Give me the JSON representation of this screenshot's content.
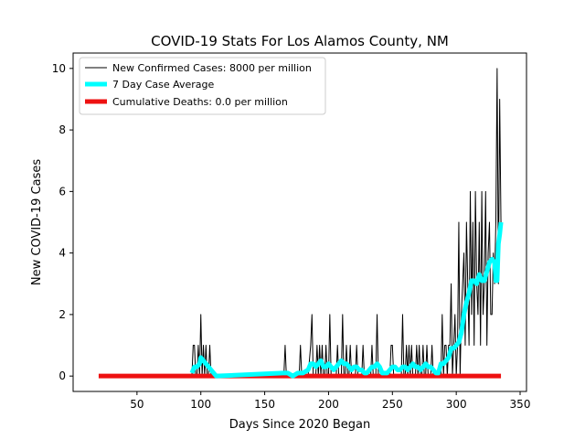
{
  "chart_data": {
    "type": "line",
    "title": "COVID-19 Stats For Los Alamos County, NM",
    "xlabel": "Days Since 2020 Began",
    "ylabel": "New COVID-19 Cases",
    "xlim": [
      0,
      355
    ],
    "ylim": [
      -0.5,
      10.5
    ],
    "xticks": [
      50,
      100,
      150,
      200,
      250,
      300,
      350
    ],
    "yticks": [
      0,
      2,
      4,
      6,
      8,
      10
    ],
    "grid": false,
    "legend_position": "top-left",
    "series": [
      {
        "name": "New Confirmed Cases: 8000 per million",
        "color": "#000000",
        "points": [
          [
            93,
            0
          ],
          [
            94,
            1
          ],
          [
            95,
            1
          ],
          [
            96,
            0
          ],
          [
            97,
            0
          ],
          [
            98,
            1
          ],
          [
            99,
            0
          ],
          [
            100,
            2
          ],
          [
            101,
            0
          ],
          [
            102,
            1
          ],
          [
            103,
            0
          ],
          [
            104,
            1
          ],
          [
            105,
            0
          ],
          [
            106,
            0
          ],
          [
            107,
            1
          ],
          [
            108,
            0
          ],
          [
            109,
            0
          ],
          [
            110,
            0
          ],
          [
            111,
            0
          ],
          [
            112,
            0
          ],
          [
            164,
            0
          ],
          [
            165,
            0
          ],
          [
            166,
            1
          ],
          [
            167,
            0
          ],
          [
            168,
            0
          ],
          [
            170,
            0
          ],
          [
            172,
            0
          ],
          [
            174,
            0
          ],
          [
            176,
            0
          ],
          [
            177,
            0
          ],
          [
            178,
            1
          ],
          [
            179,
            0
          ],
          [
            180,
            0
          ],
          [
            182,
            0
          ],
          [
            184,
            0
          ],
          [
            186,
            1
          ],
          [
            187,
            2
          ],
          [
            188,
            0
          ],
          [
            189,
            0
          ],
          [
            190,
            0
          ],
          [
            191,
            1
          ],
          [
            192,
            0
          ],
          [
            193,
            1
          ],
          [
            194,
            0
          ],
          [
            195,
            1
          ],
          [
            196,
            0
          ],
          [
            197,
            0
          ],
          [
            198,
            1
          ],
          [
            199,
            0
          ],
          [
            200,
            0
          ],
          [
            201,
            2
          ],
          [
            202,
            0
          ],
          [
            203,
            0
          ],
          [
            204,
            0
          ],
          [
            205,
            0
          ],
          [
            206,
            0
          ],
          [
            207,
            1
          ],
          [
            208,
            0
          ],
          [
            209,
            0
          ],
          [
            210,
            0
          ],
          [
            211,
            2
          ],
          [
            212,
            0
          ],
          [
            213,
            0
          ],
          [
            214,
            1
          ],
          [
            215,
            0
          ],
          [
            216,
            0
          ],
          [
            217,
            1
          ],
          [
            218,
            0
          ],
          [
            219,
            0
          ],
          [
            220,
            0
          ],
          [
            221,
            0
          ],
          [
            222,
            1
          ],
          [
            223,
            0
          ],
          [
            224,
            0
          ],
          [
            225,
            0
          ],
          [
            226,
            0
          ],
          [
            227,
            1
          ],
          [
            228,
            0
          ],
          [
            229,
            0
          ],
          [
            230,
            0
          ],
          [
            231,
            0
          ],
          [
            232,
            0
          ],
          [
            233,
            0
          ],
          [
            234,
            1
          ],
          [
            235,
            0
          ],
          [
            236,
            0
          ],
          [
            237,
            0
          ],
          [
            238,
            2
          ],
          [
            239,
            0
          ],
          [
            240,
            0
          ],
          [
            241,
            0
          ],
          [
            242,
            0
          ],
          [
            243,
            0
          ],
          [
            244,
            0
          ],
          [
            245,
            0
          ],
          [
            246,
            0
          ],
          [
            247,
            0
          ],
          [
            248,
            0
          ],
          [
            249,
            1
          ],
          [
            250,
            1
          ],
          [
            251,
            0
          ],
          [
            252,
            0
          ],
          [
            253,
            0
          ],
          [
            254,
            0
          ],
          [
            255,
            0
          ],
          [
            256,
            0
          ],
          [
            257,
            0
          ],
          [
            258,
            2
          ],
          [
            259,
            0
          ],
          [
            260,
            0
          ],
          [
            261,
            1
          ],
          [
            262,
            0
          ],
          [
            263,
            1
          ],
          [
            264,
            0
          ],
          [
            265,
            1
          ],
          [
            266,
            0
          ],
          [
            267,
            0
          ],
          [
            268,
            0
          ],
          [
            269,
            1
          ],
          [
            270,
            0
          ],
          [
            271,
            1
          ],
          [
            272,
            0
          ],
          [
            273,
            0
          ],
          [
            274,
            1
          ],
          [
            275,
            0
          ],
          [
            276,
            0
          ],
          [
            277,
            1
          ],
          [
            278,
            0
          ],
          [
            279,
            0
          ],
          [
            280,
            0
          ],
          [
            281,
            1
          ],
          [
            282,
            0
          ],
          [
            283,
            0
          ],
          [
            284,
            0
          ],
          [
            285,
            0
          ],
          [
            286,
            0
          ],
          [
            287,
            0
          ],
          [
            288,
            0
          ],
          [
            289,
            2
          ],
          [
            290,
            0
          ],
          [
            291,
            1
          ],
          [
            292,
            1
          ],
          [
            293,
            0
          ],
          [
            294,
            1
          ],
          [
            295,
            1
          ],
          [
            296,
            3
          ],
          [
            297,
            0
          ],
          [
            298,
            1
          ],
          [
            299,
            2
          ],
          [
            300,
            0
          ],
          [
            301,
            1
          ],
          [
            302,
            5
          ],
          [
            303,
            0
          ],
          [
            304,
            2
          ],
          [
            305,
            3
          ],
          [
            306,
            4
          ],
          [
            307,
            1
          ],
          [
            308,
            5
          ],
          [
            309,
            3
          ],
          [
            310,
            1
          ],
          [
            311,
            6
          ],
          [
            312,
            2
          ],
          [
            313,
            5
          ],
          [
            314,
            1
          ],
          [
            315,
            6
          ],
          [
            316,
            3
          ],
          [
            317,
            2
          ],
          [
            318,
            5
          ],
          [
            319,
            1
          ],
          [
            320,
            6
          ],
          [
            321,
            2
          ],
          [
            322,
            3
          ],
          [
            323,
            6
          ],
          [
            324,
            1
          ],
          [
            325,
            4
          ],
          [
            326,
            5
          ],
          [
            327,
            2
          ],
          [
            328,
            2
          ],
          [
            329,
            4
          ],
          [
            330,
            3
          ],
          [
            331,
            5
          ],
          [
            332,
            10
          ],
          [
            333,
            3
          ],
          [
            334,
            9
          ],
          [
            335,
            5
          ]
        ]
      },
      {
        "name": "7 Day Case Average",
        "color": "#00ffff",
        "points": [
          [
            93,
            0.1
          ],
          [
            95,
            0.3
          ],
          [
            97,
            0.3
          ],
          [
            99,
            0.4
          ],
          [
            100,
            0.6
          ],
          [
            102,
            0.5
          ],
          [
            104,
            0.4
          ],
          [
            106,
            0.3
          ],
          [
            108,
            0.2
          ],
          [
            110,
            0.1
          ],
          [
            112,
            0.0
          ],
          [
            164,
            0.1
          ],
          [
            168,
            0.1
          ],
          [
            172,
            0.0
          ],
          [
            176,
            0.1
          ],
          [
            180,
            0.1
          ],
          [
            184,
            0.2
          ],
          [
            186,
            0.4
          ],
          [
            188,
            0.4
          ],
          [
            190,
            0.3
          ],
          [
            192,
            0.4
          ],
          [
            194,
            0.5
          ],
          [
            196,
            0.3
          ],
          [
            198,
            0.3
          ],
          [
            200,
            0.4
          ],
          [
            202,
            0.3
          ],
          [
            204,
            0.2
          ],
          [
            206,
            0.3
          ],
          [
            208,
            0.4
          ],
          [
            210,
            0.5
          ],
          [
            212,
            0.4
          ],
          [
            214,
            0.4
          ],
          [
            216,
            0.3
          ],
          [
            218,
            0.2
          ],
          [
            220,
            0.3
          ],
          [
            222,
            0.3
          ],
          [
            224,
            0.2
          ],
          [
            226,
            0.2
          ],
          [
            228,
            0.1
          ],
          [
            230,
            0.1
          ],
          [
            232,
            0.2
          ],
          [
            234,
            0.3
          ],
          [
            236,
            0.3
          ],
          [
            238,
            0.4
          ],
          [
            240,
            0.3
          ],
          [
            242,
            0.1
          ],
          [
            244,
            0.1
          ],
          [
            246,
            0.1
          ],
          [
            248,
            0.2
          ],
          [
            250,
            0.3
          ],
          [
            252,
            0.3
          ],
          [
            254,
            0.2
          ],
          [
            256,
            0.2
          ],
          [
            258,
            0.3
          ],
          [
            260,
            0.3
          ],
          [
            262,
            0.2
          ],
          [
            264,
            0.3
          ],
          [
            266,
            0.4
          ],
          [
            268,
            0.3
          ],
          [
            270,
            0.3
          ],
          [
            272,
            0.2
          ],
          [
            274,
            0.3
          ],
          [
            276,
            0.4
          ],
          [
            278,
            0.3
          ],
          [
            280,
            0.3
          ],
          [
            282,
            0.2
          ],
          [
            284,
            0.1
          ],
          [
            286,
            0.1
          ],
          [
            288,
            0.4
          ],
          [
            290,
            0.4
          ],
          [
            292,
            0.5
          ],
          [
            294,
            0.6
          ],
          [
            296,
            0.9
          ],
          [
            298,
            0.9
          ],
          [
            300,
            1.0
          ],
          [
            302,
            1.1
          ],
          [
            304,
            1.4
          ],
          [
            306,
            2.0
          ],
          [
            308,
            2.4
          ],
          [
            310,
            2.7
          ],
          [
            312,
            3.1
          ],
          [
            314,
            3.1
          ],
          [
            316,
            3.0
          ],
          [
            318,
            3.3
          ],
          [
            320,
            3.1
          ],
          [
            322,
            3.1
          ],
          [
            324,
            3.4
          ],
          [
            326,
            3.7
          ],
          [
            328,
            3.8
          ],
          [
            330,
            3.7
          ],
          [
            331,
            3.1
          ],
          [
            332,
            3.1
          ],
          [
            333,
            4.3
          ],
          [
            334,
            4.6
          ],
          [
            335,
            5.0
          ]
        ]
      },
      {
        "name": "Cumulative Deaths: 0.0 per million",
        "color": "#ee1111",
        "points": [
          [
            20,
            0
          ],
          [
            335,
            0
          ]
        ]
      }
    ]
  }
}
